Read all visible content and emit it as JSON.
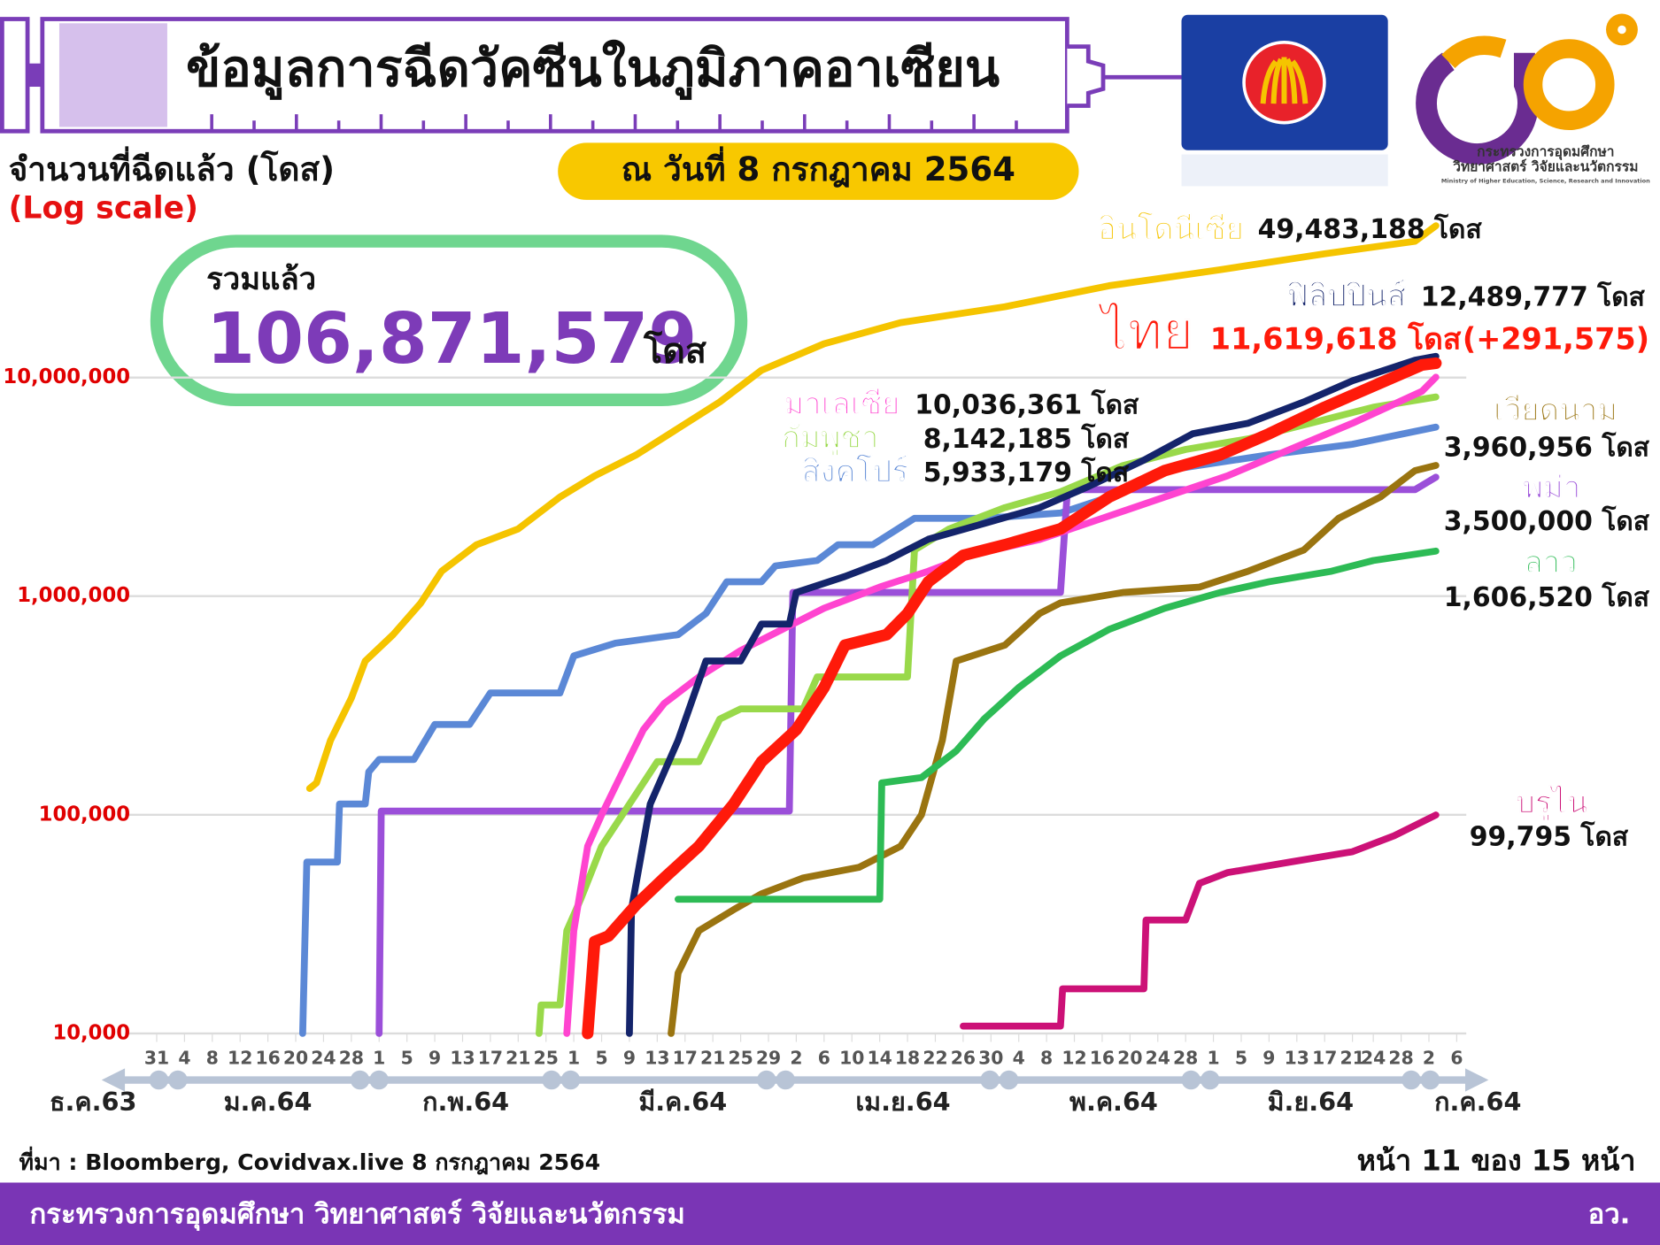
{
  "page": {
    "title": "ข้อมูลการฉีดวัคซีนในภูมิภาคอาเซียน",
    "date": "ณ วันที่ 8 กรกฎาคม 2564",
    "total_caption": "รวมแล้ว",
    "total": "106,871,579",
    "total_unit": "โดส",
    "logo_line1": "กระทรวงการอุดมศึกษา",
    "logo_line2": "วิทยาศาสตร์ วิจัยและนวัตกรรม",
    "logo_english": "Ministry of Higher Education, Science, Research and Innovation",
    "source": "ที่มา : Bloomberg, Covidvax.live 8 กรกฎาคม 2564",
    "page_number": "หน้า 11 ของ 15 หน้า",
    "footer_left": "กระทรวงการอุดมศึกษา วิทยาศาสตร์ วิจัยและนวัตกรรม",
    "footer_right": "อว."
  },
  "chart_data": {
    "type": "line",
    "y_label": "จำนวนที่ฉีดแล้ว (โดส)",
    "scale_note": "(Log scale)",
    "log_scale": true,
    "grid": true,
    "ylim": [
      10000,
      100000000
    ],
    "yticks": [
      {
        "value": 10000,
        "label": "10,000"
      },
      {
        "value": 100000,
        "label": "100,000"
      },
      {
        "value": 1000000,
        "label": "1,000,000"
      },
      {
        "value": 10000000,
        "label": "10,000,000"
      }
    ],
    "xlim": [
      0,
      187
    ],
    "xticks": [
      {
        "value": 0,
        "label": "31"
      },
      {
        "value": 4,
        "label": "4"
      },
      {
        "value": 8,
        "label": "8"
      },
      {
        "value": 12,
        "label": "12"
      },
      {
        "value": 16,
        "label": "16"
      },
      {
        "value": 20,
        "label": "20"
      },
      {
        "value": 24,
        "label": "24"
      },
      {
        "value": 28,
        "label": "28"
      },
      {
        "value": 32,
        "label": "1"
      },
      {
        "value": 36,
        "label": "5"
      },
      {
        "value": 40,
        "label": "9"
      },
      {
        "value": 44,
        "label": "13"
      },
      {
        "value": 48,
        "label": "17"
      },
      {
        "value": 52,
        "label": "21"
      },
      {
        "value": 56,
        "label": "25"
      },
      {
        "value": 60,
        "label": "1"
      },
      {
        "value": 64,
        "label": "5"
      },
      {
        "value": 68,
        "label": "9"
      },
      {
        "value": 72,
        "label": "13"
      },
      {
        "value": 76,
        "label": "17"
      },
      {
        "value": 80,
        "label": "21"
      },
      {
        "value": 84,
        "label": "25"
      },
      {
        "value": 88,
        "label": "29"
      },
      {
        "value": 92,
        "label": "2"
      },
      {
        "value": 96,
        "label": "6"
      },
      {
        "value": 100,
        "label": "10"
      },
      {
        "value": 104,
        "label": "14"
      },
      {
        "value": 108,
        "label": "18"
      },
      {
        "value": 112,
        "label": "22"
      },
      {
        "value": 116,
        "label": "26"
      },
      {
        "value": 120,
        "label": "30"
      },
      {
        "value": 124,
        "label": "4"
      },
      {
        "value": 128,
        "label": "8"
      },
      {
        "value": 132,
        "label": "12"
      },
      {
        "value": 136,
        "label": "16"
      },
      {
        "value": 140,
        "label": "20"
      },
      {
        "value": 144,
        "label": "24"
      },
      {
        "value": 148,
        "label": "28"
      },
      {
        "value": 152,
        "label": "1"
      },
      {
        "value": 156,
        "label": "5"
      },
      {
        "value": 160,
        "label": "9"
      },
      {
        "value": 164,
        "label": "13"
      },
      {
        "value": 168,
        "label": "17"
      },
      {
        "value": 172,
        "label": "21"
      },
      {
        "value": 175,
        "label": "24"
      },
      {
        "value": 179,
        "label": "28"
      },
      {
        "value": 183,
        "label": "2"
      },
      {
        "value": 187,
        "label": "6"
      }
    ],
    "month_labels": [
      "ธ.ค.63",
      "ม.ค.64",
      "ก.พ.64",
      "มี.ค.64",
      "เม.ย.64",
      "พ.ค.64",
      "มิ.ย.64",
      "ก.ค.64"
    ],
    "series": [
      {
        "name": "อินโดนีเซีย",
        "color": "#f5c400",
        "total_label": "49,483,188 โดส",
        "x": [
          22,
          23,
          25,
          28,
          30,
          34,
          38,
          41,
          46,
          52,
          58,
          63,
          69,
          75,
          81,
          87,
          96,
          107,
          122,
          137,
          153,
          168,
          181,
          184
        ],
        "values": [
          132000,
          140000,
          219000,
          342000,
          505000,
          667000,
          931000,
          1300000,
          1718000,
          2030000,
          2840000,
          3550000,
          4430000,
          5850000,
          7730000,
          10800000,
          14260000,
          17820000,
          21080000,
          26300000,
          31100000,
          36800000,
          42000000,
          49483188
        ]
      },
      {
        "name": "สิงคโปร์",
        "color": "#5b88d6",
        "total_label": "5,933,179 โดส",
        "x": [
          21,
          21.6,
          26,
          26.3,
          30,
          30.5,
          32,
          37,
          40,
          45,
          48,
          58,
          60,
          66,
          75,
          79,
          82,
          87,
          89,
          95,
          98,
          103,
          109,
          119,
          130,
          137,
          145,
          160,
          172,
          184
        ],
        "values": [
          10000,
          60800,
          60800,
          112000,
          112000,
          157000,
          179000,
          179000,
          259000,
          259000,
          361000,
          361000,
          533000,
          610000,
          667000,
          833000,
          1164000,
          1164000,
          1375000,
          1455000,
          1718000,
          1718000,
          2270000,
          2270000,
          2400000,
          2840000,
          3750000,
          4430000,
          4950000,
          5933179
        ]
      },
      {
        "name": "พม่า",
        "color": "#9b4fd9",
        "total_label": "3,500,000 โดส",
        "x": [
          32,
          32.3,
          60,
          91,
          91.5,
          130,
          131,
          181,
          184
        ],
        "values": [
          10000,
          104000,
          104000,
          104000,
          1040000,
          1040000,
          3070000,
          3070000,
          3500000
        ]
      },
      {
        "name": "กัมพูชา",
        "color": "#99d94a",
        "total_label": "8,142,185 โดส",
        "x": [
          55,
          55.3,
          58,
          59,
          61,
          64,
          69,
          72,
          78,
          81,
          84,
          93,
          95,
          108,
          109,
          114,
          122,
          130,
          139,
          148,
          157,
          166,
          175,
          184
        ],
        "values": [
          10000,
          13500,
          13500,
          29500,
          41200,
          71800,
          125000,
          175000,
          175000,
          274000,
          305000,
          305000,
          427000,
          427000,
          1626000,
          2030000,
          2540000,
          3000000,
          3960000,
          4690000,
          5240000,
          6180000,
          7310000,
          8142185
        ]
      },
      {
        "name": "มาเลเซีย",
        "color": "#ff44d0",
        "total_label": "10,036,361 โดส",
        "x": [
          59,
          60,
          62,
          64,
          67,
          70,
          73,
          78,
          84,
          90,
          96,
          104,
          111,
          117,
          127,
          136,
          145,
          154,
          163,
          172,
          182,
          184
        ],
        "values": [
          10000,
          29500,
          71800,
          100000,
          157000,
          245000,
          323000,
          427000,
          564000,
          705000,
          881000,
          1100000,
          1300000,
          1538000,
          1816000,
          2270000,
          2840000,
          3550000,
          4690000,
          6180000,
          8650000,
          10036361
        ]
      },
      {
        "name": "เวียดนาม",
        "color": "#9a7410",
        "total_label": "3,960,956 โดส",
        "x": [
          74,
          75,
          78,
          83,
          87,
          93,
          101,
          107,
          110,
          113,
          115,
          122,
          127,
          130,
          139,
          150,
          157,
          165,
          170,
          176,
          181,
          184
        ],
        "values": [
          10000,
          18900,
          29500,
          36800,
          43500,
          51400,
          57500,
          71800,
          100000,
          219000,
          505000,
          597000,
          833000,
          931000,
          1040000,
          1100000,
          1300000,
          1626000,
          2270000,
          2840000,
          3750000,
          3960956
        ]
      },
      {
        "name": "ลาว",
        "color": "#2dbb55",
        "total_label": "1,606,520 โดส",
        "x": [
          75,
          104,
          104.3,
          110,
          115,
          119,
          124,
          130,
          137,
          145,
          153,
          160,
          169,
          175,
          184
        ],
        "values": [
          41100,
          41100,
          140000,
          148000,
          196000,
          274000,
          382000,
          533000,
          705000,
          881000,
          1040000,
          1164000,
          1300000,
          1455000,
          1606520
        ]
      },
      {
        "name": "บรูไน",
        "color": "#cc1177",
        "total_label": "99,795 โดส",
        "x": [
          116,
          130,
          130.3,
          142,
          142.3,
          148,
          150,
          154,
          163,
          172,
          178,
          184
        ],
        "values": [
          10800,
          10800,
          16000,
          16000,
          33000,
          33000,
          48600,
          54400,
          60800,
          67800,
          80200,
          99795
        ]
      },
      {
        "name": "ฟิลิปปินส์",
        "color": "#14246b",
        "total_label": "12,489,777 โดส",
        "x": [
          68,
          68.3,
          71,
          75,
          79,
          84,
          87,
          91,
          92,
          99,
          105,
          111,
          119,
          127,
          134,
          142,
          149,
          157,
          165,
          172,
          181,
          184
        ],
        "values": [
          10000,
          37000,
          112000,
          219000,
          505000,
          505000,
          745000,
          745000,
          1040000,
          1230000,
          1455000,
          1820000,
          2150000,
          2540000,
          3170000,
          4190000,
          5530000,
          6180000,
          7730000,
          9660000,
          12000000,
          12489777
        ]
      },
      {
        "name": "ไทย",
        "color": "#ff1a0a",
        "total_label": "11,619,618 โดส",
        "change_label": "(+291,575)",
        "x": [
          62,
          63,
          65,
          69,
          73,
          78,
          83,
          87,
          92,
          96,
          99,
          105,
          108,
          111,
          116,
          122,
          130,
          137,
          145,
          153,
          160,
          168,
          175,
          182,
          184
        ],
        "values": [
          10000,
          26300,
          27900,
          38900,
          51400,
          71800,
          112000,
          175000,
          245000,
          382000,
          597000,
          667000,
          833000,
          1164000,
          1538000,
          1718000,
          2030000,
          2840000,
          3750000,
          4430000,
          5530000,
          7310000,
          9140000,
          11420000,
          11619618
        ]
      }
    ]
  }
}
